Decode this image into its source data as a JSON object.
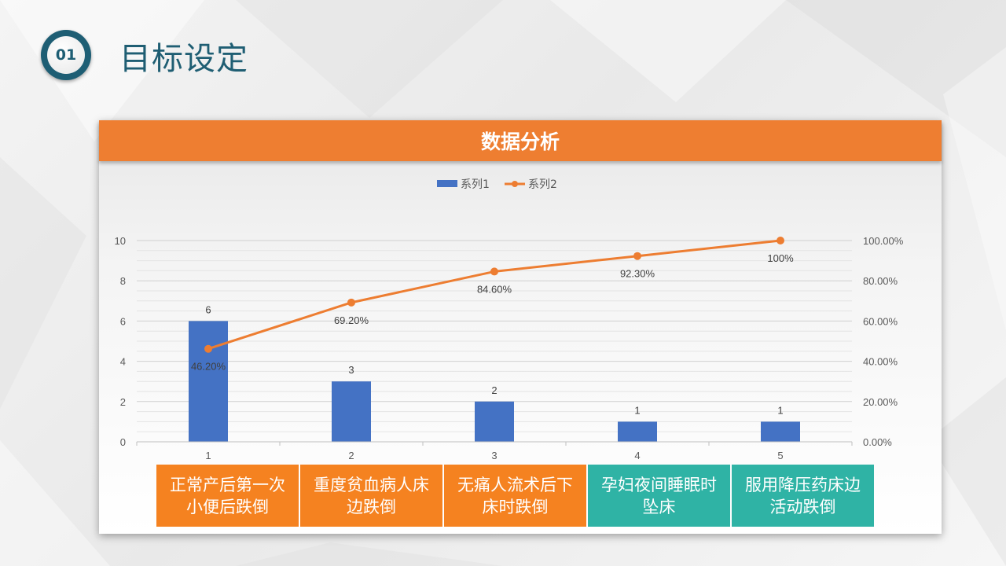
{
  "header": {
    "badge": "01",
    "title": "目标设定"
  },
  "card": {
    "title": "数据分析"
  },
  "colors": {
    "bar": "#4472c4",
    "line": "#ed7d31",
    "header": "#ee7e31",
    "teal": "#2fb3a5",
    "orange": "#f58220"
  },
  "chart_data": {
    "type": "bar",
    "categories": [
      "1",
      "2",
      "3",
      "4",
      "5"
    ],
    "series": [
      {
        "name": "系列1",
        "type": "bar",
        "axis": "left",
        "values": [
          6,
          3,
          2,
          1,
          1
        ],
        "labels": [
          "6",
          "3",
          "2",
          "1",
          "1"
        ]
      },
      {
        "name": "系列2",
        "type": "line",
        "axis": "right",
        "values": [
          46.2,
          69.2,
          84.6,
          92.3,
          100
        ],
        "labels": [
          "46.20%",
          "69.20%",
          "84.60%",
          "92.30%",
          "100%"
        ]
      }
    ],
    "y_left": {
      "ylim": [
        0,
        10
      ],
      "ticks": [
        "0",
        "2",
        "4",
        "6",
        "8",
        "10"
      ]
    },
    "y_right": {
      "ylim": [
        0,
        100
      ],
      "ticks": [
        "0.00%",
        "20.00%",
        "40.00%",
        "60.00%",
        "80.00%",
        "100.00%"
      ]
    },
    "legend": {
      "position": "top",
      "items": [
        "系列1",
        "系列2"
      ]
    },
    "grid": true
  },
  "category_boxes": [
    {
      "label": "正常产后第一次小便后跌倒",
      "color": "orange"
    },
    {
      "label": "重度贫血病人床边跌倒",
      "color": "orange"
    },
    {
      "label": "无痛人流术后下床时跌倒",
      "color": "orange"
    },
    {
      "label": "孕妇夜间睡眠时坠床",
      "color": "teal"
    },
    {
      "label": "服用降压药床边活动跌倒",
      "color": "teal"
    }
  ]
}
